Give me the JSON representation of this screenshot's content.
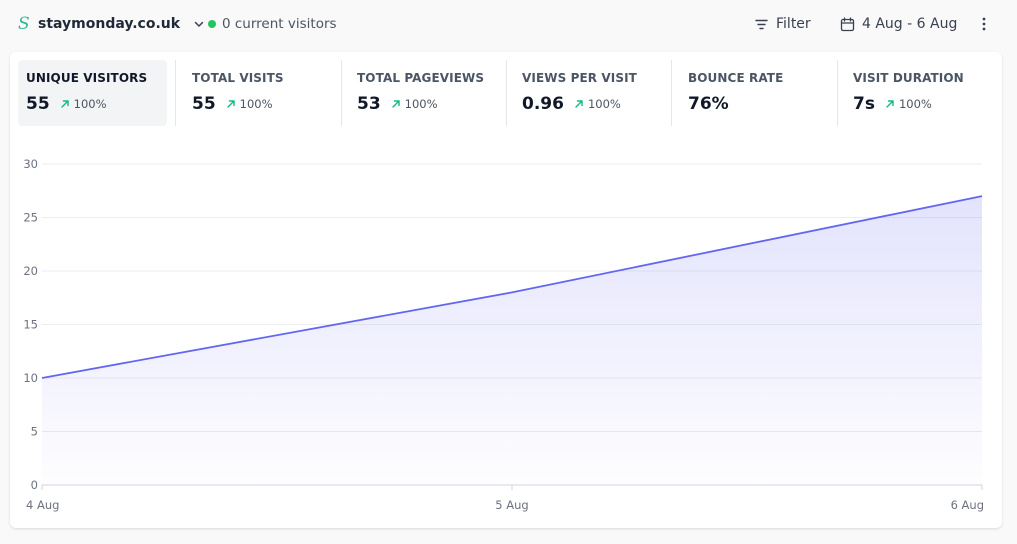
{
  "header": {
    "site_logo": "S",
    "site_name": "staymonday.co.uk",
    "current_visitors": "0 current visitors",
    "filter_label": "Filter",
    "date_range": "4 Aug - 6 Aug"
  },
  "stats": [
    {
      "label": "UNIQUE VISITORS",
      "value": "55",
      "change": "100%"
    },
    {
      "label": "TOTAL VISITS",
      "value": "55",
      "change": "100%"
    },
    {
      "label": "TOTAL PAGEVIEWS",
      "value": "53",
      "change": "100%"
    },
    {
      "label": "VIEWS PER VISIT",
      "value": "0.96",
      "change": "100%"
    },
    {
      "label": "BOUNCE RATE",
      "value": "76%",
      "change": ""
    },
    {
      "label": "VISIT DURATION",
      "value": "7s",
      "change": "100%"
    }
  ],
  "colors": {
    "accent": "#6366f1",
    "positive": "#10b981",
    "live_dot": "#22c55e",
    "logo": "#2dba8f"
  },
  "icons": {
    "site": "s-logo-icon",
    "chevron": "chevron-down-icon",
    "filter": "filter-icon",
    "calendar": "calendar-icon",
    "menu": "kebab-menu-icon",
    "change": "arrow-up-right-icon"
  },
  "chart_data": {
    "type": "area",
    "categories": [
      "4 Aug",
      "5 Aug",
      "6 Aug"
    ],
    "series": [
      {
        "values": [
          10,
          18,
          27
        ]
      }
    ],
    "yticks": [
      0,
      5,
      10,
      15,
      20,
      25,
      30
    ],
    "ylim": [
      0,
      30
    ],
    "grid": true,
    "legend": "none"
  }
}
